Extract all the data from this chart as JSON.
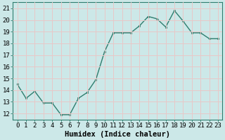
{
  "x": [
    0,
    1,
    2,
    3,
    4,
    5,
    6,
    7,
    8,
    9,
    10,
    11,
    12,
    13,
    14,
    15,
    16,
    17,
    18,
    19,
    20,
    21,
    22,
    23
  ],
  "y": [
    14.5,
    13.3,
    13.9,
    12.9,
    12.9,
    11.9,
    11.9,
    13.3,
    13.8,
    14.9,
    17.3,
    18.9,
    18.9,
    18.9,
    19.5,
    20.3,
    20.1,
    19.4,
    20.8,
    19.9,
    18.9,
    18.9,
    18.4,
    18.4
  ],
  "line_color": "#2e7d6e",
  "marker": "s",
  "marker_size": 2,
  "bg_color": "#cce8e8",
  "grid_color": "#e8c8c8",
  "xlabel": "Humidex (Indice chaleur)",
  "ylim": [
    11.5,
    21.5
  ],
  "xlim": [
    -0.5,
    23.5
  ],
  "yticks": [
    12,
    13,
    14,
    15,
    16,
    17,
    18,
    19,
    20,
    21
  ],
  "xticks": [
    0,
    1,
    2,
    3,
    4,
    5,
    6,
    7,
    8,
    9,
    10,
    11,
    12,
    13,
    14,
    15,
    16,
    17,
    18,
    19,
    20,
    21,
    22,
    23
  ],
  "tick_label_fontsize": 6.5,
  "xlabel_fontsize": 7.5,
  "xlabel_fontweight": "bold",
  "spine_color": "#2e7d6e",
  "line_width": 1.0
}
